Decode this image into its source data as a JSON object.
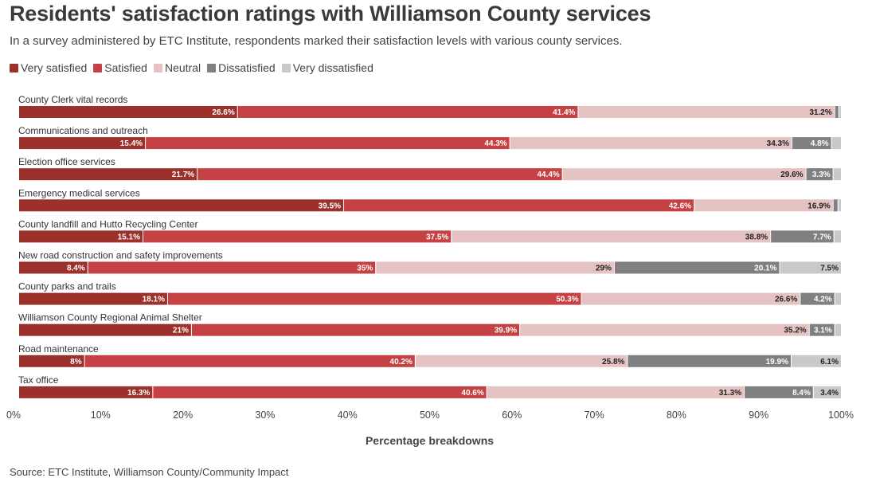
{
  "chart_data": {
    "type": "bar",
    "orientation": "horizontal",
    "stacked": true,
    "title": "Residents' satisfaction ratings with Williamson County services",
    "subtitle": "In a survey administered by ETC Institute, respondents marked their satisfaction levels with various county services.",
    "xlabel": "Percentage breakdowns",
    "ylabel": "",
    "xlim": [
      0,
      100
    ],
    "ticks": [
      "0%",
      "10%",
      "20%",
      "30%",
      "40%",
      "50%",
      "60%",
      "70%",
      "80%",
      "90%",
      "100%"
    ],
    "legend_position": "top-left",
    "source": "Source: ETC Institute, Williamson County/Community Impact",
    "categories": [
      "County Clerk vital records",
      "Communications and outreach",
      "Election office services",
      "Emergency medical services",
      "County landfill and Hutto Recycling Center",
      "New road construction and safety improvements",
      "County parks and trails",
      "Williamson County Regional Animal Shelter",
      "Road maintenance",
      "Tax office"
    ],
    "series": [
      {
        "name": "Very satisfied",
        "color": "#9c302b",
        "text_color": "#ffffff",
        "values": [
          26.6,
          15.4,
          21.7,
          39.5,
          15.1,
          8.4,
          18.1,
          21,
          8,
          16.3
        ],
        "labels": [
          "26.6%",
          "15.4%",
          "21.7%",
          "39.5%",
          "15.1%",
          "8.4%",
          "18.1%",
          "21%",
          "8%",
          "16.3%"
        ]
      },
      {
        "name": "Satisfied",
        "color": "#c64143",
        "text_color": "#ffffff",
        "values": [
          41.4,
          44.3,
          44.4,
          42.6,
          37.5,
          35,
          50.3,
          39.9,
          40.2,
          40.6
        ],
        "labels": [
          "41.4%",
          "44.3%",
          "44.4%",
          "42.6%",
          "37.5%",
          "35%",
          "50.3%",
          "39.9%",
          "40.2%",
          "40.6%"
        ]
      },
      {
        "name": "Neutral",
        "color": "#e6c3c3",
        "text_color": "#222222",
        "values": [
          31.2,
          34.3,
          29.6,
          16.9,
          38.8,
          29,
          26.6,
          35.2,
          25.8,
          31.3
        ],
        "labels": [
          "31.2%",
          "34.3%",
          "29.6%",
          "16.9%",
          "38.8%",
          "29%",
          "26.6%",
          "35.2%",
          "25.8%",
          "31.3%"
        ]
      },
      {
        "name": "Dissatisfied",
        "color": "#808080",
        "text_color": "#ffffff",
        "values": [
          0.5,
          4.8,
          3.3,
          0.6,
          7.7,
          20.1,
          4.2,
          3.1,
          19.9,
          8.4
        ],
        "labels": [
          "",
          "4.8%",
          "3.3%",
          "",
          "7.7%",
          "20.1%",
          "4.2%",
          "3.1%",
          "19.9%",
          "8.4%"
        ]
      },
      {
        "name": "Very dissatisfied",
        "color": "#c9c9c9",
        "text_color": "#222222",
        "values": [
          0.3,
          1.2,
          1.0,
          0.4,
          0.9,
          7.5,
          0.8,
          0.8,
          6.1,
          3.4
        ],
        "labels": [
          "",
          "",
          "",
          "",
          "",
          "7.5%",
          "",
          "",
          "6.1%",
          "3.4%"
        ]
      }
    ]
  }
}
